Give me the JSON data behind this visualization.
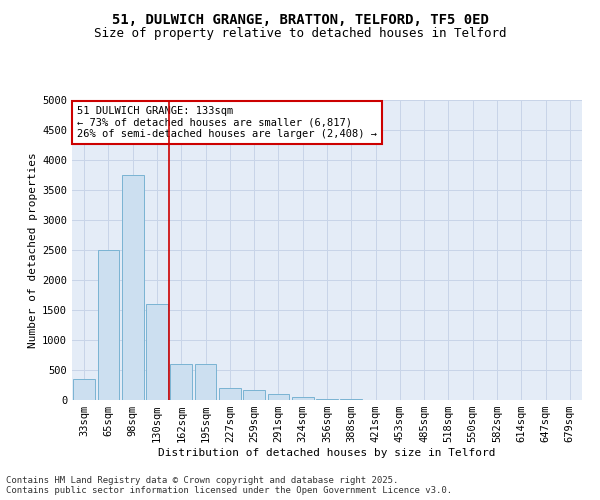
{
  "title_line1": "51, DULWICH GRANGE, BRATTON, TELFORD, TF5 0ED",
  "title_line2": "Size of property relative to detached houses in Telford",
  "xlabel": "Distribution of detached houses by size in Telford",
  "ylabel": "Number of detached properties",
  "categories": [
    "33sqm",
    "65sqm",
    "98sqm",
    "130sqm",
    "162sqm",
    "195sqm",
    "227sqm",
    "259sqm",
    "291sqm",
    "324sqm",
    "356sqm",
    "388sqm",
    "421sqm",
    "453sqm",
    "485sqm",
    "518sqm",
    "550sqm",
    "582sqm",
    "614sqm",
    "647sqm",
    "679sqm"
  ],
  "values": [
    350,
    2500,
    3750,
    1600,
    600,
    600,
    200,
    175,
    100,
    50,
    25,
    10,
    5,
    2,
    1,
    1,
    0,
    0,
    0,
    0,
    0
  ],
  "bar_color": "#ccdff0",
  "bar_edge_color": "#7ab3d3",
  "red_line_x": 3.5,
  "annotation_text": "51 DULWICH GRANGE: 133sqm\n← 73% of detached houses are smaller (6,817)\n26% of semi-detached houses are larger (2,408) →",
  "annotation_box_color": "#ffffff",
  "annotation_box_edge_color": "#cc0000",
  "red_line_color": "#cc0000",
  "ylim": [
    0,
    5000
  ],
  "yticks": [
    0,
    500,
    1000,
    1500,
    2000,
    2500,
    3000,
    3500,
    4000,
    4500,
    5000
  ],
  "grid_color": "#c8d4e8",
  "background_color": "#e4ecf7",
  "footer_text": "Contains HM Land Registry data © Crown copyright and database right 2025.\nContains public sector information licensed under the Open Government Licence v3.0.",
  "title_fontsize": 10,
  "subtitle_fontsize": 9,
  "axis_label_fontsize": 8,
  "tick_fontsize": 7.5,
  "annotation_fontsize": 7.5,
  "footer_fontsize": 6.5
}
